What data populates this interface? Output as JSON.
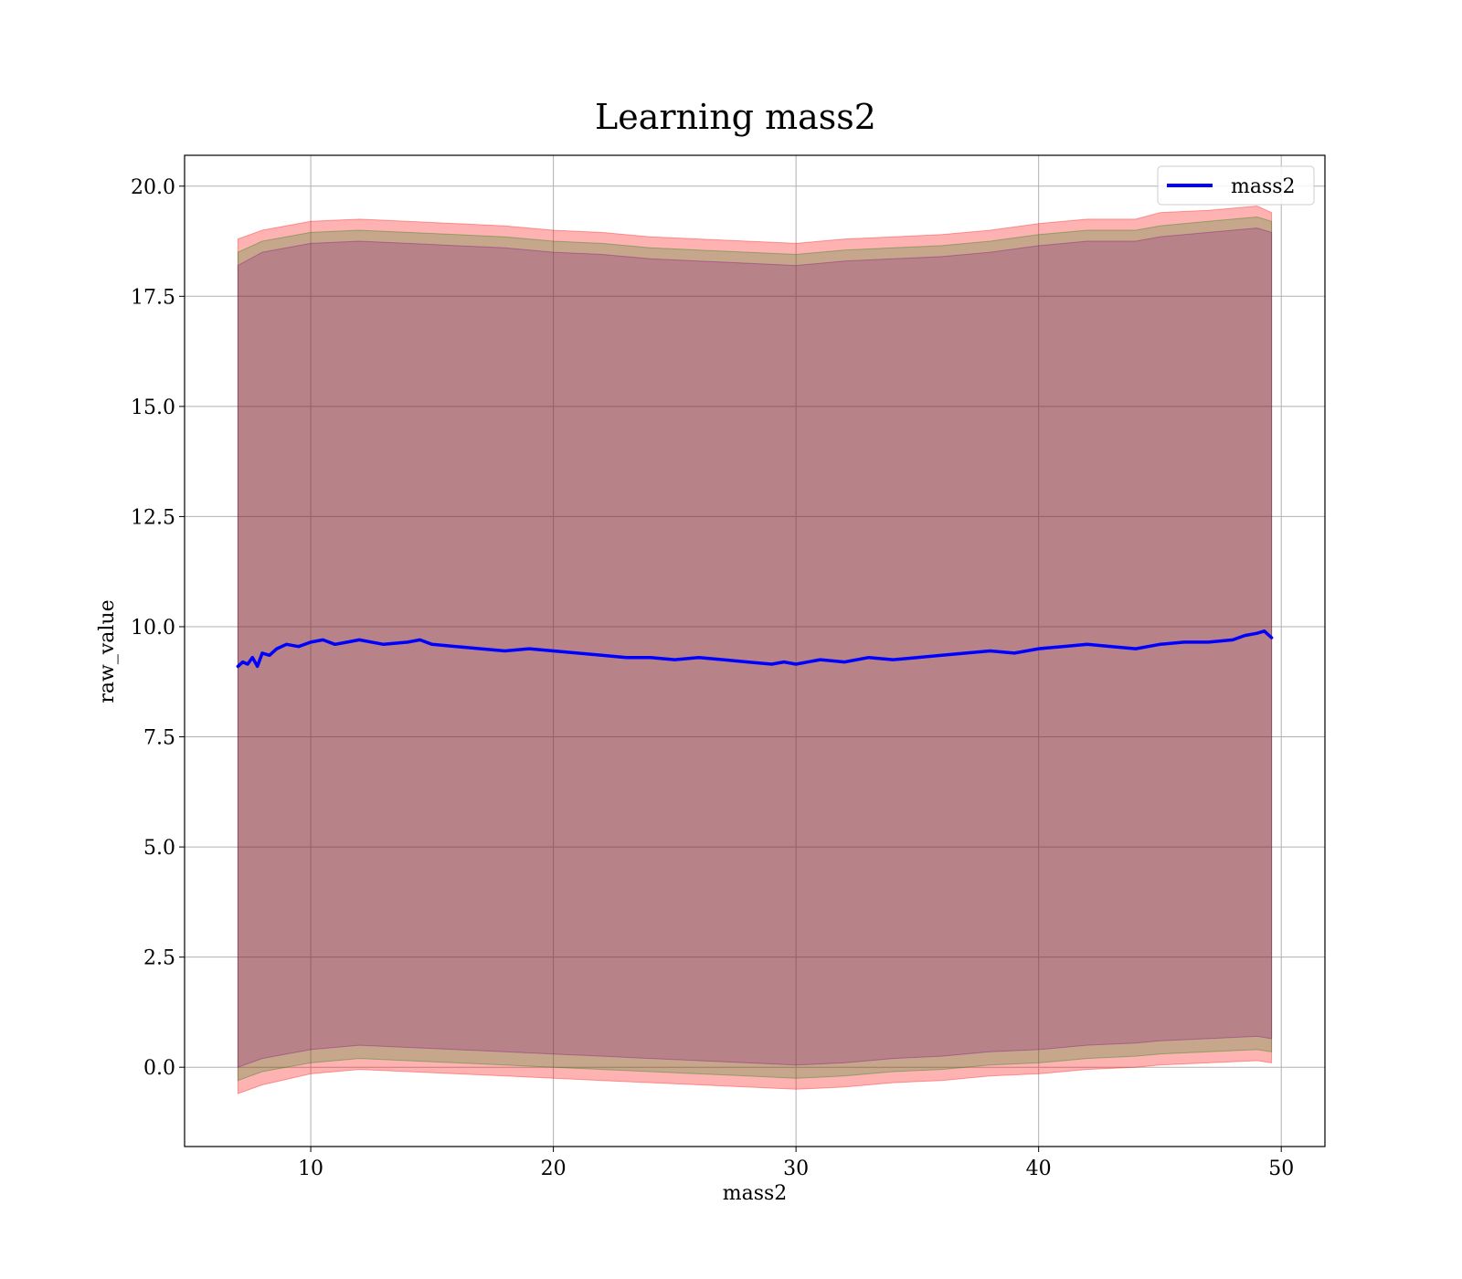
{
  "chart_data": {
    "type": "line",
    "title": "Learning mass2",
    "xlabel": "mass2",
    "ylabel": "raw_value",
    "xlim": [
      4.8,
      51.8
    ],
    "ylim": [
      -1.8,
      20.7
    ],
    "grid": true,
    "legend_position": "top-right",
    "x_ticks": [
      "10",
      "20",
      "30",
      "40",
      "50"
    ],
    "y_ticks": [
      "0.0",
      "2.5",
      "5.0",
      "7.5",
      "10.0",
      "12.5",
      "15.0",
      "17.5",
      "20.0"
    ],
    "series": [
      {
        "name": "mass2",
        "color": "#0000ff",
        "x": [
          7.0,
          7.2,
          7.4,
          7.6,
          7.8,
          8.0,
          8.3,
          8.6,
          9.0,
          9.5,
          10.0,
          10.5,
          11.0,
          11.5,
          12.0,
          13.0,
          14.0,
          14.5,
          15.0,
          16.0,
          17.0,
          18.0,
          19.0,
          20.0,
          21.0,
          22.0,
          23.0,
          24.0,
          25.0,
          26.0,
          27.0,
          28.0,
          29.0,
          29.5,
          30.0,
          31.0,
          32.0,
          33.0,
          34.0,
          35.0,
          36.0,
          37.0,
          38.0,
          39.0,
          40.0,
          41.0,
          42.0,
          43.0,
          44.0,
          45.0,
          46.0,
          47.0,
          48.0,
          48.5,
          49.0,
          49.3,
          49.6
        ],
        "y": [
          9.1,
          9.2,
          9.15,
          9.3,
          9.1,
          9.4,
          9.35,
          9.5,
          9.6,
          9.55,
          9.65,
          9.7,
          9.6,
          9.65,
          9.7,
          9.6,
          9.65,
          9.7,
          9.6,
          9.55,
          9.5,
          9.45,
          9.5,
          9.45,
          9.4,
          9.35,
          9.3,
          9.3,
          9.25,
          9.3,
          9.25,
          9.2,
          9.15,
          9.2,
          9.15,
          9.25,
          9.2,
          9.3,
          9.25,
          9.3,
          9.35,
          9.4,
          9.45,
          9.4,
          9.5,
          9.55,
          9.6,
          9.55,
          9.5,
          9.6,
          9.65,
          9.65,
          9.7,
          9.8,
          9.85,
          9.9,
          9.75
        ]
      }
    ],
    "bands": [
      {
        "color": "#ff0000",
        "opacity": 0.3,
        "x": [
          7.0,
          8.0,
          10.0,
          12.0,
          14.0,
          16.0,
          18.0,
          20.0,
          22.0,
          24.0,
          26.0,
          28.0,
          30.0,
          32.0,
          34.0,
          36.0,
          38.0,
          40.0,
          42.0,
          44.0,
          45.0,
          47.0,
          49.0,
          49.6
        ],
        "upper": [
          18.8,
          19.0,
          19.2,
          19.25,
          19.2,
          19.15,
          19.1,
          19.0,
          18.95,
          18.85,
          18.8,
          18.75,
          18.7,
          18.8,
          18.85,
          18.9,
          19.0,
          19.15,
          19.25,
          19.25,
          19.4,
          19.45,
          19.55,
          19.4
        ],
        "lower": [
          -0.6,
          -0.4,
          -0.15,
          -0.05,
          -0.1,
          -0.15,
          -0.2,
          -0.25,
          -0.3,
          -0.35,
          -0.4,
          -0.45,
          -0.5,
          -0.45,
          -0.35,
          -0.3,
          -0.2,
          -0.15,
          -0.05,
          0.0,
          0.05,
          0.1,
          0.15,
          0.1
        ]
      },
      {
        "color": "#008000",
        "opacity": 0.22,
        "x": [
          7.0,
          8.0,
          10.0,
          12.0,
          14.0,
          16.0,
          18.0,
          20.0,
          22.0,
          24.0,
          26.0,
          28.0,
          30.0,
          32.0,
          34.0,
          36.0,
          38.0,
          40.0,
          42.0,
          44.0,
          45.0,
          47.0,
          49.0,
          49.6
        ],
        "upper": [
          18.5,
          18.75,
          18.95,
          19.0,
          18.95,
          18.9,
          18.85,
          18.75,
          18.7,
          18.6,
          18.55,
          18.5,
          18.45,
          18.55,
          18.6,
          18.65,
          18.75,
          18.9,
          19.0,
          19.0,
          19.1,
          19.2,
          19.3,
          19.2
        ],
        "lower": [
          -0.3,
          -0.1,
          0.1,
          0.2,
          0.15,
          0.1,
          0.05,
          0.0,
          -0.05,
          -0.1,
          -0.15,
          -0.2,
          -0.25,
          -0.2,
          -0.1,
          -0.05,
          0.05,
          0.1,
          0.2,
          0.25,
          0.3,
          0.35,
          0.4,
          0.35
        ]
      },
      {
        "color": "#800080",
        "opacity": 0.22,
        "x": [
          7.0,
          8.0,
          10.0,
          12.0,
          14.0,
          16.0,
          18.0,
          20.0,
          22.0,
          24.0,
          26.0,
          28.0,
          30.0,
          32.0,
          34.0,
          36.0,
          38.0,
          40.0,
          42.0,
          44.0,
          45.0,
          47.0,
          49.0,
          49.6
        ],
        "upper": [
          18.2,
          18.5,
          18.7,
          18.75,
          18.7,
          18.65,
          18.6,
          18.5,
          18.45,
          18.35,
          18.3,
          18.25,
          18.2,
          18.3,
          18.35,
          18.4,
          18.5,
          18.65,
          18.75,
          18.75,
          18.85,
          18.95,
          19.05,
          18.95
        ],
        "lower": [
          0.0,
          0.2,
          0.4,
          0.5,
          0.45,
          0.4,
          0.35,
          0.3,
          0.25,
          0.2,
          0.15,
          0.1,
          0.05,
          0.1,
          0.2,
          0.25,
          0.35,
          0.4,
          0.5,
          0.55,
          0.6,
          0.65,
          0.7,
          0.65
        ]
      }
    ]
  }
}
